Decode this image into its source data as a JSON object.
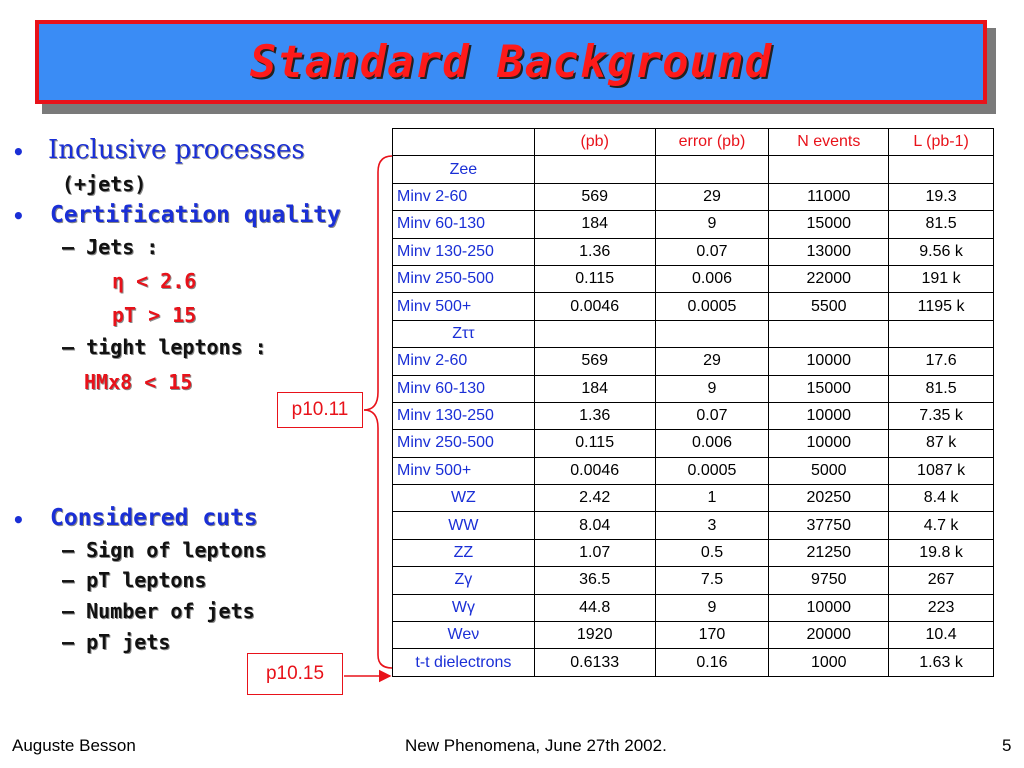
{
  "title": "Standard Background",
  "bullets": {
    "inclusive": "Inclusive processes",
    "inclusive_sub": "(+jets)",
    "certification": "Certification quality",
    "jets": "–  Jets :",
    "eta": "η < 2.6",
    "pt15": "pT > 15",
    "tight": "–  tight leptons :",
    "hmx": "HMx8 < 15",
    "considered": "Considered cuts",
    "cuts": [
      "–  Sign of leptons",
      "–  pT leptons",
      "–  Number of jets",
      "–  pT jets"
    ]
  },
  "callouts": {
    "first": "p10.11",
    "second": "p10.15"
  },
  "table": {
    "headers": [
      "",
      "(pb)",
      "error (pb)",
      "N events",
      "L (pb-1)"
    ],
    "rows": [
      {
        "label": "Zee",
        "center": true,
        "cells": [
          "",
          "",
          "",
          ""
        ]
      },
      {
        "label": "Minv 2-60",
        "cells": [
          "569",
          "29",
          "11000",
          "19.3"
        ]
      },
      {
        "label": "Minv 60-130",
        "cells": [
          "184",
          "9",
          "15000",
          "81.5"
        ]
      },
      {
        "label": "Minv 130-250",
        "cells": [
          "1.36",
          "0.07",
          "13000",
          "9.56 k"
        ]
      },
      {
        "label": "Minv 250-500",
        "cells": [
          "0.115",
          "0.006",
          "22000",
          "191 k"
        ]
      },
      {
        "label": "Minv 500+",
        "cells": [
          "0.0046",
          "0.0005",
          "5500",
          "1195 k"
        ]
      },
      {
        "label": "Zττ",
        "center": true,
        "cells": [
          "",
          "",
          "",
          ""
        ]
      },
      {
        "label": "Minv 2-60",
        "cells": [
          "569",
          "29",
          "10000",
          "17.6"
        ]
      },
      {
        "label": "Minv 60-130",
        "cells": [
          "184",
          "9",
          "15000",
          "81.5"
        ]
      },
      {
        "label": "Minv 130-250",
        "cells": [
          "1.36",
          "0.07",
          "10000",
          "7.35 k"
        ]
      },
      {
        "label": "Minv 250-500",
        "cells": [
          "0.115",
          "0.006",
          "10000",
          "87 k"
        ]
      },
      {
        "label": "Minv 500+",
        "cells": [
          "0.0046",
          "0.0005",
          "5000",
          "1087 k"
        ]
      },
      {
        "label": "WZ",
        "center": true,
        "cells": [
          "2.42",
          "1",
          "20250",
          "8.4 k"
        ]
      },
      {
        "label": "WW",
        "center": true,
        "cells": [
          "8.04",
          "3",
          "37750",
          "4.7 k"
        ]
      },
      {
        "label": "ZZ",
        "center": true,
        "cells": [
          "1.07",
          "0.5",
          "21250",
          "19.8 k"
        ]
      },
      {
        "label": "Zγ",
        "center": true,
        "cells": [
          "36.5",
          "7.5",
          "9750",
          "267"
        ]
      },
      {
        "label": "Wγ",
        "center": true,
        "cells": [
          "44.8",
          "9",
          "10000",
          "223"
        ]
      },
      {
        "label": "Weν",
        "center": true,
        "cells": [
          "1920",
          "170",
          "20000",
          "10.4"
        ]
      },
      {
        "label": "t-t dielectrons",
        "center": true,
        "cells": [
          "0.6133",
          "0.16",
          "1000",
          "1.63 k"
        ]
      }
    ]
  },
  "footer": {
    "author": "Auguste Besson",
    "event": "New Phenomena, June 27th 2002.",
    "page": "5"
  },
  "colors": {
    "title_bg": "#3a8cf5",
    "title_border": "#e8121a",
    "title_text": "#ff1a1a",
    "label_blue": "#1a2fd6",
    "header_red": "#e8121a"
  }
}
